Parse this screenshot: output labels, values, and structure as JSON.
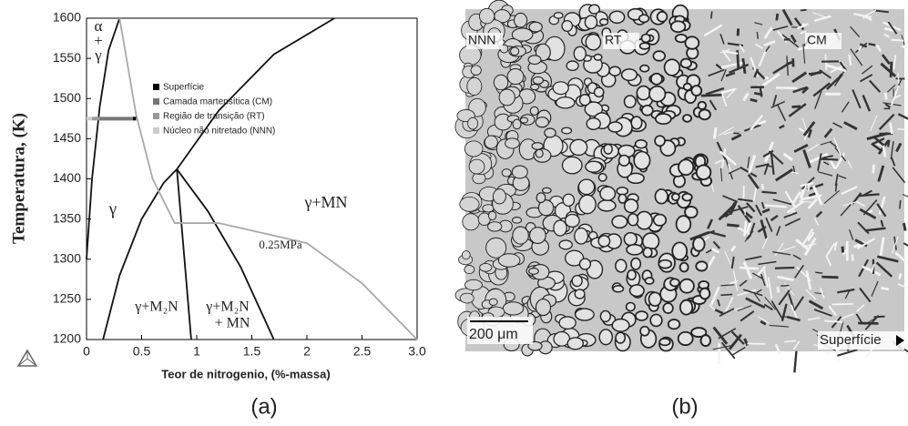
{
  "chart_data": {
    "type": "line",
    "xlabel": "Teor de nitrogenio, (%-massa)",
    "ylabel": "Temperatura, (K)",
    "xlim": [
      0,
      3
    ],
    "ylim": [
      1200,
      1600
    ],
    "xticks": [
      0,
      0.5,
      1,
      1.5,
      2,
      2.5,
      {
        "value": 3,
        "label": "3.0"
      }
    ],
    "yticks": [
      1200,
      1250,
      1300,
      1350,
      1400,
      1450,
      1500,
      1550,
      1600
    ],
    "series": [
      {
        "color": "#111111",
        "x": [
          0,
          0.05,
          0.12,
          0.2,
          0.3
        ],
        "values": [
          1300,
          1400,
          1490,
          1560,
          1600
        ]
      },
      {
        "color": "#111111",
        "x": [
          0.15,
          0.3,
          0.5,
          0.7,
          0.82
        ],
        "values": [
          1200,
          1280,
          1350,
          1395,
          1412
        ]
      },
      {
        "color": "#111111",
        "x": [
          0.82,
          1.1,
          1.4,
          1.7
        ],
        "values": [
          1412,
          1360,
          1290,
          1200
        ]
      },
      {
        "color": "#111111",
        "x": [
          0.82,
          0.95
        ],
        "values": [
          1412,
          1200
        ]
      },
      {
        "color": "#111111",
        "x": [
          0.82,
          1.2,
          1.7,
          2.25
        ],
        "values": [
          1412,
          1485,
          1555,
          1600
        ]
      },
      {
        "color": "#aaaaaa",
        "x": [
          0.3,
          0.45,
          0.6,
          0.8,
          1.2,
          2,
          2.5,
          3
        ],
        "values": [
          1600,
          1480,
          1400,
          1345,
          1345,
          1320,
          1270,
          1200
        ]
      },
      {
        "name": "Superfície",
        "color": "#000000",
        "x": [
          0.42,
          0.45
        ],
        "values": [
          1475,
          1475
        ]
      },
      {
        "name": "Camada martensítica (CM)",
        "color": "#777777",
        "x": [
          0.12,
          0.42
        ],
        "values": [
          1475,
          1475
        ]
      },
      {
        "name": "Região de transição (RT)",
        "color": "#999999",
        "x": [
          0.05,
          0.12
        ],
        "values": [
          1475,
          1475
        ]
      },
      {
        "name": "Núcleo não nitretado (NNN)",
        "color": "#cccccc",
        "x": [
          0,
          0.05
        ],
        "values": [
          1475,
          1475
        ]
      }
    ],
    "annotations": [
      "α",
      "+",
      "γ",
      "γ",
      "γ+MN",
      "γ+M₂N",
      "γ+M₂N",
      "+ MN",
      "0.25MPa"
    ],
    "caption": "(a)"
  },
  "micrograph": {
    "labels": [
      "NNN",
      "RT",
      "CM"
    ],
    "scale": "200 μm",
    "surface": "Superfície",
    "caption": "(b)"
  }
}
